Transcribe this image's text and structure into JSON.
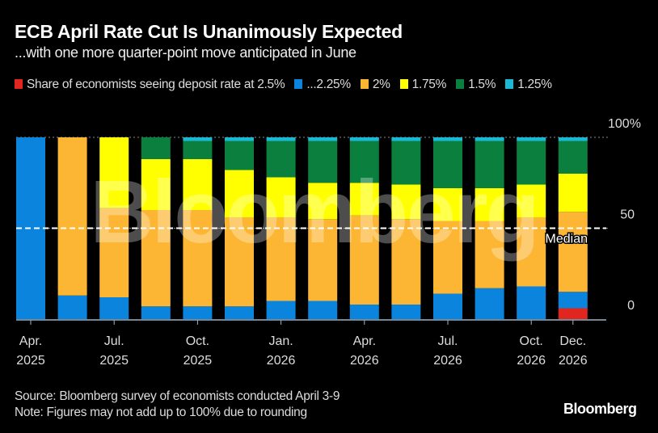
{
  "header": {
    "title": "ECB April Rate Cut Is Unanimously Expected",
    "subtitle": "...with one more quarter-point move anticipated in June"
  },
  "chart_data": {
    "type": "bar",
    "stacked": true,
    "title": "ECB April Rate Cut Is Unanimously Expected",
    "subtitle": "...with one more quarter-point move anticipated in June",
    "legend_position": "top",
    "categories": [
      "Apr. 2025",
      "",
      "Jul. 2025",
      "",
      "Oct. 2025",
      "",
      "Jan. 2026",
      "",
      "Apr. 2026",
      "",
      "Jul. 2026",
      "",
      "Oct. 2026",
      "Dec. 2026"
    ],
    "x_tick_labels": [
      {
        "index": 0,
        "line1": "Apr.",
        "line2": "2025"
      },
      {
        "index": 2,
        "line1": "Jul.",
        "line2": "2025"
      },
      {
        "index": 4,
        "line1": "Oct.",
        "line2": "2025"
      },
      {
        "index": 6,
        "line1": "Jan.",
        "line2": "2026"
      },
      {
        "index": 8,
        "line1": "Apr.",
        "line2": "2026"
      },
      {
        "index": 10,
        "line1": "Jul.",
        "line2": "2026"
      },
      {
        "index": 12,
        "line1": "Oct.",
        "line2": "2026"
      },
      {
        "index": 13,
        "line1": "Dec.",
        "line2": "2026"
      }
    ],
    "series": [
      {
        "name": "Share of economists seeing deposit rate at 2.5%",
        "color": "#e0261f",
        "values": [
          0,
          0,
          0,
          0,
          0,
          0,
          0,
          0,
          0,
          0,
          0,
          0,
          0,
          6
        ]
      },
      {
        "name": "...2.25%",
        "color": "#0a84dd",
        "values": [
          100,
          13,
          12,
          7,
          7,
          7,
          10,
          10,
          8,
          8,
          14,
          17,
          18,
          9
        ]
      },
      {
        "name": "2%",
        "color": "#fdb633",
        "values": [
          0,
          87,
          49,
          53,
          53,
          49,
          46,
          45,
          49,
          47,
          40,
          37,
          38,
          44
        ]
      },
      {
        "name": "1.75%",
        "color": "#ffff00",
        "values": [
          0,
          0,
          39,
          28,
          28,
          26,
          22,
          20,
          18,
          19,
          18,
          18,
          18,
          21
        ]
      },
      {
        "name": "1.5%",
        "color": "#0b7f3e",
        "values": [
          0,
          0,
          0,
          12,
          10,
          16,
          20,
          23,
          23,
          24,
          26,
          26,
          24,
          18
        ]
      },
      {
        "name": "1.25%",
        "color": "#19b8d4",
        "values": [
          0,
          0,
          0,
          0,
          2,
          2,
          2,
          2,
          2,
          2,
          2,
          2,
          2,
          2
        ]
      }
    ],
    "ylim": [
      0,
      100
    ],
    "y_ticks": [
      {
        "value": 100,
        "label": "100%"
      },
      {
        "value": 50,
        "label": "50"
      },
      {
        "value": 0,
        "label": "0"
      }
    ],
    "median_line": {
      "value": 50,
      "label": "Median"
    },
    "grid": true
  },
  "footer": {
    "source": "Source: Bloomberg survey of economists conducted April 3-9",
    "note": "Note: Figures may not add up to 100% due to rounding"
  },
  "branding": {
    "logo": "Bloomberg",
    "watermark": "Bloomberg"
  }
}
